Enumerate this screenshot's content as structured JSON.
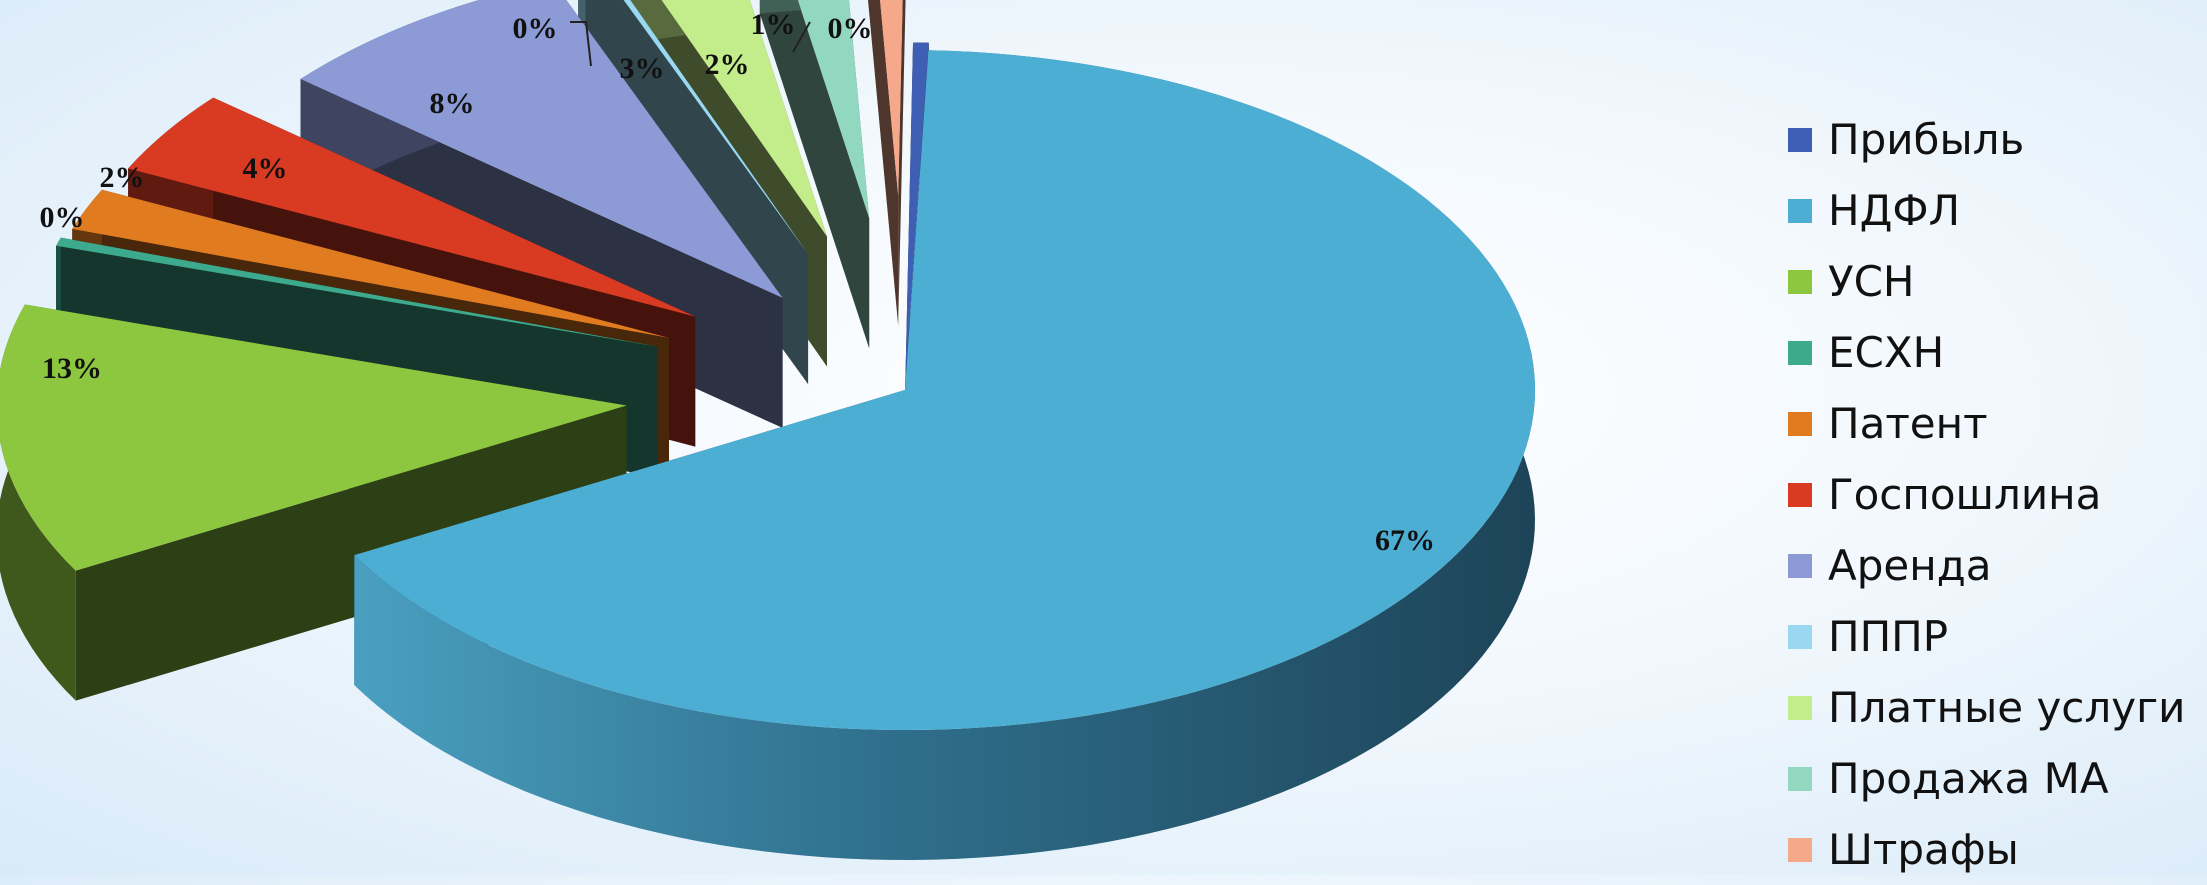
{
  "chart_data": {
    "type": "pie",
    "title": "",
    "categories": [
      "Прибыль",
      "НДФЛ",
      "УСН",
      "ЕСХН",
      "Патент",
      "Госпошлина",
      "Аренда",
      "ПППР",
      "Платные услуги",
      "Продажа МА",
      "Штрафы"
    ],
    "values": [
      0.4,
      67,
      13,
      0.4,
      2,
      4,
      8,
      0.2,
      3,
      2,
      1
    ],
    "data_labels": [
      "0%",
      "67%",
      "13%",
      "0%",
      "2%",
      "4%",
      "8%",
      "0%",
      "3%",
      "2%",
      "1%"
    ],
    "colors": [
      "#3f5fb4",
      "#4daed4",
      "#8dc63f",
      "#3daa8e",
      "#e07b20",
      "#d83a22",
      "#8c9ad6",
      "#99d8f0",
      "#c3ec8a",
      "#92d8c0",
      "#f6a98a"
    ],
    "legend_position": "right",
    "exploded": true,
    "three_d": true
  }
}
